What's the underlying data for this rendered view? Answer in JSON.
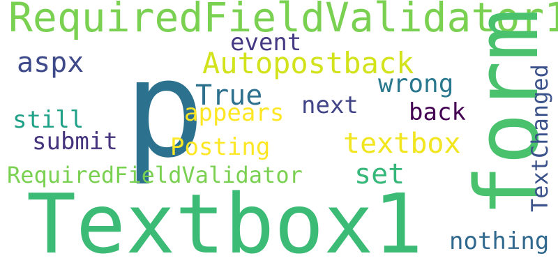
{
  "words": [
    {
      "id": "w-requiredfieldvalidator1",
      "text": "RequiredFieldValidator1",
      "color": "#7ad151"
    },
    {
      "id": "w-event",
      "text": "event",
      "color": "#443983"
    },
    {
      "id": "w-aspx",
      "text": "aspx",
      "color": "#3e4a89"
    },
    {
      "id": "w-autopostback",
      "text": "Autopostback",
      "color": "#d2e21b"
    },
    {
      "id": "w-p",
      "text": "p",
      "color": "#2c728e"
    },
    {
      "id": "w-true",
      "text": "True",
      "color": "#2d708e"
    },
    {
      "id": "w-wrong",
      "text": "wrong",
      "color": "#2a788e"
    },
    {
      "id": "w-form",
      "text": "form",
      "color": "#4ac16d"
    },
    {
      "id": "w-textchanged",
      "text": "TextChanged",
      "color": "#3b528b"
    },
    {
      "id": "w-still",
      "text": "still",
      "color": "#1fa187"
    },
    {
      "id": "w-appears",
      "text": "appears",
      "color": "#fde725"
    },
    {
      "id": "w-next",
      "text": "next",
      "color": "#414487"
    },
    {
      "id": "w-back",
      "text": "back",
      "color": "#440154"
    },
    {
      "id": "w-submit",
      "text": "submit",
      "color": "#46337e"
    },
    {
      "id": "w-textbox",
      "text": "textbox",
      "color": "#f1e51d"
    },
    {
      "id": "w-posting",
      "text": "Posting",
      "color": "#fde725"
    },
    {
      "id": "w-requiredfieldvalidator",
      "text": "RequiredFieldValidator",
      "color": "#7ad151"
    },
    {
      "id": "w-set",
      "text": "set",
      "color": "#35b779"
    },
    {
      "id": "w-textbox1",
      "text": "Textbox1",
      "color": "#3bbb75"
    },
    {
      "id": "w-nothing",
      "text": "nothing",
      "color": "#31688e"
    }
  ]
}
